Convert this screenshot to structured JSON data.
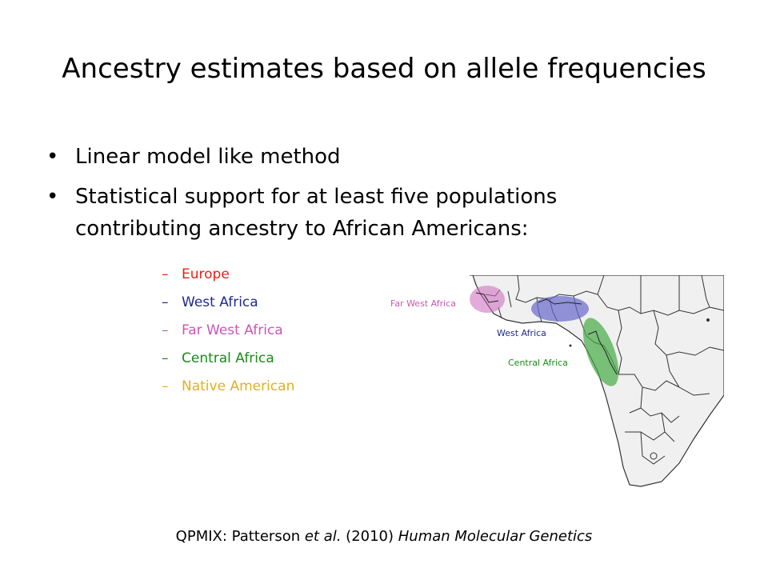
{
  "slide": {
    "title": "Ancestry estimates based on allele frequencies",
    "bullets": [
      "Linear model like method",
      "Statistical support for at least five populations contributing ancestry to African Americans:"
    ],
    "subitems": [
      {
        "dash": "–",
        "label": "Europe",
        "color": "#e3211c"
      },
      {
        "dash": "–",
        "label": "West Africa",
        "color": "#1f2a8a"
      },
      {
        "dash": "–",
        "label": "Far West Africa",
        "color": "#c957b5"
      },
      {
        "dash": "–",
        "label": "Central Africa",
        "color": "#1a8a1a"
      },
      {
        "dash": "–",
        "label": "Native American",
        "color": "#e0b020"
      }
    ],
    "map": {
      "labels": {
        "far_west": "Far West Africa",
        "west": "West Africa",
        "central": "Central Africa"
      },
      "colors": {
        "far_west": "#cc66bb",
        "west": "#6666cc",
        "central": "#44aa44"
      }
    },
    "citation": {
      "prefix": "QPMIX: Patterson ",
      "etal": "et al.",
      "year": " (2010) ",
      "journal": "Human Molecular Genetics"
    }
  }
}
